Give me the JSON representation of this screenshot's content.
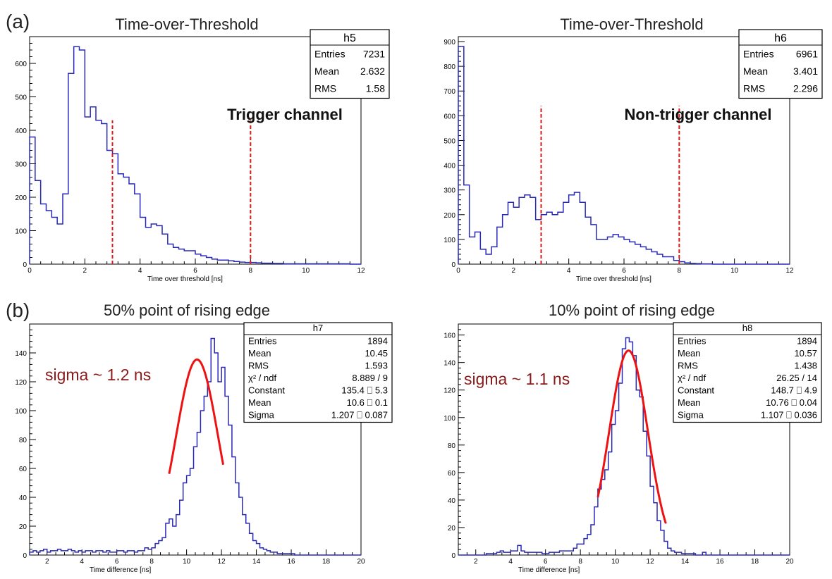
{
  "panel_labels": {
    "a": "(a)",
    "b": "(b)"
  },
  "chart_data": [
    {
      "id": "h5",
      "type": "histogram",
      "title": "Time-over-Threshold",
      "xlabel": "Time over threshold [ns]",
      "xlim": [
        0,
        12
      ],
      "ylim": [
        0,
        680
      ],
      "xticks": [
        0,
        2,
        4,
        6,
        8,
        10,
        12
      ],
      "yticks": [
        0,
        100,
        200,
        300,
        400,
        500,
        600
      ],
      "bin_width": 0.2,
      "bin_start": 0,
      "values": [
        380,
        250,
        180,
        160,
        140,
        120,
        210,
        570,
        650,
        640,
        440,
        470,
        430,
        420,
        340,
        330,
        270,
        260,
        240,
        210,
        140,
        110,
        120,
        115,
        90,
        60,
        50,
        45,
        40,
        40,
        30,
        25,
        20,
        15,
        12,
        12,
        10,
        8,
        6,
        5,
        5,
        4,
        3,
        3,
        2,
        2,
        1,
        1,
        1,
        1,
        1,
        1,
        1,
        1,
        1,
        1,
        1,
        1,
        0,
        0
      ],
      "cut_lines": [
        3,
        8
      ],
      "annotation": "Trigger channel",
      "stats": {
        "name": "h5",
        "rows": [
          {
            "label": "Entries",
            "value": "7231"
          },
          {
            "label": "Mean",
            "value": "2.632"
          },
          {
            "label": "RMS",
            "value": "1.58"
          }
        ]
      },
      "line_color": "#2929b8",
      "cut_color": "#d91a1a"
    },
    {
      "id": "h6",
      "type": "histogram",
      "title": "Time-over-Threshold",
      "xlabel": "Time over threshold [ns]",
      "xlim": [
        0,
        12
      ],
      "ylim": [
        0,
        920
      ],
      "xticks": [
        0,
        2,
        4,
        6,
        8,
        10,
        12
      ],
      "yticks": [
        0,
        100,
        200,
        300,
        400,
        500,
        600,
        700,
        800,
        900
      ],
      "bin_width": 0.2,
      "bin_start": 0,
      "values": [
        880,
        320,
        110,
        130,
        60,
        40,
        70,
        150,
        200,
        250,
        230,
        270,
        280,
        270,
        180,
        200,
        210,
        200,
        210,
        250,
        280,
        290,
        250,
        190,
        160,
        100,
        100,
        110,
        120,
        110,
        100,
        90,
        80,
        70,
        60,
        50,
        40,
        30,
        30,
        15,
        10,
        5,
        3,
        2,
        1,
        1,
        0,
        0,
        0,
        0,
        0,
        0,
        0,
        0,
        0,
        0,
        0,
        0,
        0,
        0
      ],
      "cut_lines": [
        3,
        8
      ],
      "annotation": "Non-trigger channel",
      "stats": {
        "name": "h6",
        "rows": [
          {
            "label": "Entries",
            "value": "6961"
          },
          {
            "label": "Mean",
            "value": "3.401"
          },
          {
            "label": "RMS",
            "value": "2.296"
          }
        ]
      },
      "line_color": "#2929b8",
      "cut_color": "#d91a1a"
    },
    {
      "id": "h7",
      "type": "histogram",
      "title": "50% point of rising edge",
      "xlabel": "Time difference [ns]",
      "xlim": [
        1,
        20
      ],
      "ylim": [
        0,
        160
      ],
      "xticks": [
        2,
        4,
        6,
        8,
        10,
        12,
        14,
        16,
        18,
        20
      ],
      "yticks": [
        0,
        20,
        40,
        60,
        80,
        100,
        120,
        140
      ],
      "bin_width": 0.2,
      "bin_start": 1,
      "values": [
        2,
        3,
        2,
        3,
        4,
        2,
        3,
        3,
        4,
        3,
        3,
        4,
        3,
        2,
        3,
        2,
        3,
        3,
        2,
        3,
        3,
        2,
        3,
        2,
        2,
        3,
        3,
        2,
        3,
        3,
        2,
        3,
        3,
        5,
        4,
        5,
        8,
        10,
        12,
        22,
        25,
        20,
        28,
        38,
        50,
        55,
        60,
        75,
        85,
        100,
        110,
        120,
        150,
        140,
        120,
        130,
        110,
        90,
        68,
        50,
        40,
        28,
        22,
        15,
        10,
        8,
        5,
        4,
        3,
        2,
        2,
        1,
        1,
        1,
        1,
        1,
        0,
        0,
        0,
        0,
        0,
        0,
        0,
        0,
        0,
        0,
        0,
        0,
        0,
        0,
        0,
        0,
        0,
        0,
        0
      ],
      "fit": {
        "type": "gaussian",
        "constant": 135.4,
        "mean": 10.6,
        "sigma": 1.207,
        "range": [
          9.0,
          12.1
        ]
      },
      "annotation": "sigma ~ 1.2 ns",
      "stats": {
        "name": "h7",
        "rows": [
          {
            "label": "Entries",
            "value": "1894"
          },
          {
            "label": "Mean",
            "value": "10.45"
          },
          {
            "label": "RMS",
            "value": "1.593"
          },
          {
            "label": "χ² / ndf",
            "value": "8.889 / 9"
          },
          {
            "label": "Constant",
            "value": "135.4 ⎕ 5.3"
          },
          {
            "label": "Mean",
            "value": "10.6 ⎕ 0.1"
          },
          {
            "label": "Sigma",
            "value": "1.207 ⎕ 0.087"
          }
        ]
      },
      "line_color": "#2929b8",
      "fit_color": "#ee1111"
    },
    {
      "id": "h8",
      "type": "histogram",
      "title": "10% point of rising edge",
      "xlabel": "Time difference [ns]",
      "xlim": [
        1,
        20
      ],
      "ylim": [
        0,
        168
      ],
      "xticks": [
        2,
        4,
        6,
        8,
        10,
        12,
        14,
        16,
        18,
        20
      ],
      "yticks": [
        0,
        20,
        40,
        60,
        80,
        100,
        120,
        140,
        160
      ],
      "bin_width": 0.2,
      "bin_start": 1,
      "values": [
        0,
        0,
        0,
        0,
        0,
        0,
        0,
        0,
        1,
        1,
        1,
        2,
        3,
        2,
        2,
        3,
        3,
        7,
        3,
        2,
        2,
        2,
        2,
        2,
        1,
        1,
        2,
        2,
        2,
        3,
        3,
        3,
        3,
        5,
        8,
        8,
        12,
        15,
        22,
        35,
        48,
        55,
        62,
        75,
        95,
        105,
        125,
        150,
        158,
        155,
        145,
        120,
        115,
        90,
        72,
        50,
        38,
        25,
        18,
        10,
        5,
        3,
        2,
        2,
        1,
        1,
        1,
        1,
        0,
        0,
        2,
        0,
        0,
        0,
        0,
        0,
        0,
        0,
        0,
        0,
        0,
        0,
        0,
        0,
        0,
        0,
        0,
        0,
        0,
        0,
        0,
        0,
        0,
        0,
        0
      ],
      "fit": {
        "type": "gaussian",
        "constant": 148.7,
        "mean": 10.76,
        "sigma": 1.107,
        "range": [
          9.0,
          12.9
        ]
      },
      "annotation": "sigma ~ 1.1 ns",
      "stats": {
        "name": "h8",
        "rows": [
          {
            "label": "Entries",
            "value": "1894"
          },
          {
            "label": "Mean",
            "value": "10.57"
          },
          {
            "label": "RMS",
            "value": "1.438"
          },
          {
            "label": "χ² / ndf",
            "value": "26.25 / 14"
          },
          {
            "label": "Constant",
            "value": "148.7 ⎕ 4.9"
          },
          {
            "label": "Mean",
            "value": "10.76 ⎕ 0.04"
          },
          {
            "label": "Sigma",
            "value": "1.107 ⎕ 0.036"
          }
        ]
      },
      "line_color": "#2929b8",
      "fit_color": "#ee1111"
    }
  ]
}
